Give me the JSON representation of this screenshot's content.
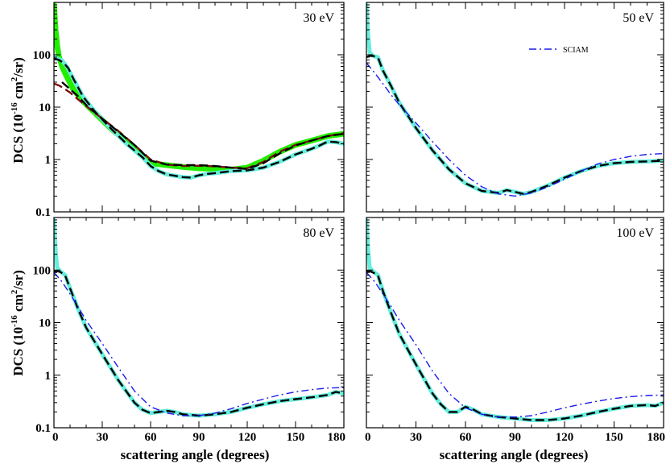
{
  "figure": {
    "y_axis_label": "DCS (10",
    "y_axis_exp": "-16",
    "y_axis_mid": " cm",
    "y_axis_sq": "2",
    "y_axis_end": "/sr)",
    "x_axis_label": "scattering angle (degrees)"
  },
  "colors": {
    "green": "#22ee00",
    "cyan": "#66eedd",
    "maroon": "#7a0f0f",
    "black": "#000000",
    "blue": "#1a1aee"
  },
  "legend": {
    "sciam": "SCIAM"
  },
  "chart_data": [
    {
      "type": "line",
      "energy_label": "30 eV",
      "xlim": [
        0,
        180
      ],
      "ylim": [
        0.1,
        1000
      ],
      "yscale": "log",
      "x_ticks": [
        "0",
        "30",
        "60",
        "90",
        "120",
        "150",
        "180"
      ],
      "y_ticks": [
        "0.1",
        "1",
        "10",
        "100"
      ],
      "series": [
        {
          "name": "green band",
          "style": "green-thick",
          "x": [
            0,
            1,
            2,
            3,
            5,
            8,
            12,
            18,
            25,
            35,
            45,
            55,
            60,
            70,
            80,
            90,
            100,
            110,
            120,
            130,
            140,
            150,
            160,
            170,
            180
          ],
          "y": [
            900,
            300,
            150,
            95,
            60,
            38,
            22,
            13,
            8,
            4,
            2.2,
            1.2,
            0.85,
            0.78,
            0.72,
            0.68,
            0.66,
            0.64,
            0.7,
            0.95,
            1.4,
            1.9,
            2.3,
            2.8,
            3.1
          ]
        },
        {
          "name": "cyan band",
          "style": "cyan-thick",
          "x": [
            0,
            2,
            5,
            8,
            12,
            18,
            25,
            35,
            45,
            55,
            60,
            65,
            70,
            80,
            85,
            90,
            95,
            100,
            110,
            120,
            130,
            140,
            150,
            160,
            165,
            170,
            175,
            180
          ],
          "y": [
            90,
            85,
            78,
            60,
            35,
            16,
            8.5,
            4,
            2,
            1.1,
            0.75,
            0.6,
            0.52,
            0.46,
            0.45,
            0.5,
            0.53,
            0.55,
            0.6,
            0.62,
            0.7,
            0.9,
            1.25,
            1.6,
            1.85,
            2.2,
            2.15,
            2.0
          ]
        },
        {
          "name": "black dashed",
          "style": "black-dash",
          "x": [
            0,
            3,
            6,
            9,
            12,
            18,
            25,
            35,
            45,
            55,
            60,
            65,
            70,
            80,
            85,
            90,
            95,
            100,
            110,
            120,
            130,
            140,
            150,
            160,
            165,
            170,
            175,
            180
          ],
          "y": [
            85,
            80,
            70,
            55,
            35,
            16,
            8.5,
            4,
            2,
            1.1,
            0.75,
            0.6,
            0.52,
            0.46,
            0.45,
            0.5,
            0.53,
            0.55,
            0.6,
            0.62,
            0.7,
            0.9,
            1.25,
            1.6,
            1.85,
            2.2,
            2.15,
            2.0
          ]
        },
        {
          "name": "maroon dashed",
          "style": "maroon-dash",
          "x": [
            0,
            3,
            6,
            10,
            15,
            20,
            30,
            40,
            50,
            60,
            70,
            80,
            90,
            100,
            110,
            120,
            130,
            140,
            150,
            160,
            170,
            180
          ],
          "y": [
            28,
            26,
            23,
            19,
            14,
            10.5,
            6,
            3.5,
            1.9,
            1.0,
            0.8,
            0.75,
            0.76,
            0.74,
            0.7,
            0.68,
            0.9,
            1.4,
            1.9,
            2.3,
            2.8,
            3.2
          ]
        },
        {
          "name": "black dashed 2",
          "style": "black-dash",
          "x": [
            5,
            10,
            15,
            20,
            30,
            40,
            50,
            60,
            70,
            80,
            90,
            100,
            110,
            120,
            130,
            140,
            150,
            160,
            170,
            180
          ],
          "y": [
            30,
            22,
            16,
            11,
            6,
            3.4,
            1.9,
            0.95,
            0.8,
            0.78,
            0.78,
            0.75,
            0.7,
            0.66,
            0.85,
            1.3,
            1.85,
            2.3,
            2.8,
            3.1
          ]
        }
      ]
    },
    {
      "type": "line",
      "energy_label": "50 eV",
      "legend_label": "SCIAM",
      "xlim": [
        0,
        180
      ],
      "ylim": [
        0.1,
        1000
      ],
      "yscale": "log",
      "x_ticks": [
        "0",
        "30",
        "60",
        "90",
        "120",
        "150",
        "180"
      ],
      "y_ticks": [
        "0.1",
        "1",
        "10",
        "100"
      ],
      "series": [
        {
          "name": "cyan band",
          "style": "cyan-thick",
          "x": [
            0,
            1,
            2,
            4,
            7,
            10,
            15,
            20,
            30,
            40,
            50,
            60,
            70,
            75,
            80,
            85,
            90,
            95,
            100,
            110,
            120,
            130,
            140,
            150,
            160,
            170,
            180
          ],
          "y": [
            900,
            250,
            110,
            95,
            90,
            50,
            25,
            12,
            4,
            1.5,
            0.65,
            0.35,
            0.25,
            0.24,
            0.23,
            0.26,
            0.24,
            0.22,
            0.24,
            0.32,
            0.45,
            0.6,
            0.75,
            0.85,
            0.9,
            0.92,
            0.95
          ]
        },
        {
          "name": "black dashed",
          "style": "black-dash",
          "x": [
            0,
            2,
            4,
            7,
            10,
            15,
            20,
            30,
            40,
            50,
            60,
            70,
            75,
            80,
            85,
            90,
            95,
            100,
            110,
            120,
            130,
            140,
            150,
            160,
            170,
            180
          ],
          "y": [
            90,
            95,
            95,
            88,
            50,
            25,
            12,
            4,
            1.5,
            0.65,
            0.35,
            0.25,
            0.24,
            0.23,
            0.26,
            0.24,
            0.22,
            0.24,
            0.32,
            0.45,
            0.6,
            0.75,
            0.85,
            0.9,
            0.92,
            0.95
          ]
        },
        {
          "name": "SCIAM",
          "style": "blue-dashdot",
          "x": [
            0,
            5,
            10,
            15,
            20,
            30,
            40,
            50,
            60,
            70,
            80,
            90,
            100,
            110,
            120,
            130,
            140,
            150,
            160,
            170,
            180
          ],
          "y": [
            70,
            45,
            28,
            17,
            11,
            5,
            2.2,
            1.0,
            0.5,
            0.3,
            0.22,
            0.2,
            0.23,
            0.3,
            0.42,
            0.6,
            0.82,
            1.0,
            1.15,
            1.25,
            1.3
          ]
        }
      ]
    },
    {
      "type": "line",
      "energy_label": "80 eV",
      "xlim": [
        0,
        180
      ],
      "ylim": [
        0.1,
        1000
      ],
      "yscale": "log",
      "x_ticks": [
        "0",
        "30",
        "60",
        "90",
        "120",
        "150",
        "180"
      ],
      "y_ticks": [
        "0.1",
        "1",
        "10",
        "100"
      ],
      "series": [
        {
          "name": "cyan band",
          "style": "cyan-thick",
          "x": [
            0,
            1,
            2,
            4,
            7,
            10,
            15,
            20,
            30,
            40,
            50,
            55,
            60,
            65,
            70,
            75,
            80,
            90,
            100,
            110,
            120,
            130,
            140,
            150,
            160,
            170,
            175,
            180
          ],
          "y": [
            900,
            250,
            110,
            95,
            80,
            45,
            18,
            8,
            2.5,
            0.8,
            0.3,
            0.22,
            0.19,
            0.2,
            0.21,
            0.2,
            0.18,
            0.17,
            0.18,
            0.2,
            0.24,
            0.28,
            0.32,
            0.35,
            0.38,
            0.42,
            0.48,
            0.45
          ]
        },
        {
          "name": "black dashed",
          "style": "black-dash",
          "x": [
            0,
            2,
            4,
            7,
            10,
            15,
            20,
            30,
            40,
            50,
            55,
            60,
            65,
            70,
            75,
            80,
            90,
            100,
            110,
            120,
            130,
            140,
            150,
            160,
            170,
            175,
            180
          ],
          "y": [
            95,
            95,
            92,
            78,
            45,
            18,
            8,
            2.5,
            0.8,
            0.3,
            0.22,
            0.19,
            0.2,
            0.21,
            0.2,
            0.18,
            0.17,
            0.18,
            0.2,
            0.24,
            0.28,
            0.32,
            0.35,
            0.38,
            0.42,
            0.48,
            0.45
          ]
        },
        {
          "name": "SCIAM",
          "style": "blue-dashdot",
          "x": [
            0,
            5,
            10,
            15,
            20,
            30,
            40,
            50,
            60,
            70,
            80,
            90,
            100,
            110,
            120,
            130,
            140,
            150,
            160,
            170,
            180
          ],
          "y": [
            90,
            60,
            35,
            20,
            11,
            4,
            1.4,
            0.5,
            0.25,
            0.19,
            0.17,
            0.17,
            0.19,
            0.23,
            0.29,
            0.35,
            0.42,
            0.48,
            0.53,
            0.57,
            0.58
          ]
        }
      ]
    },
    {
      "type": "line",
      "energy_label": "100 eV",
      "xlim": [
        0,
        180
      ],
      "ylim": [
        0.1,
        1000
      ],
      "yscale": "log",
      "x_ticks": [
        "0",
        "30",
        "60",
        "90",
        "120",
        "150",
        "180"
      ],
      "y_ticks": [
        "0.1",
        "1",
        "10",
        "100"
      ],
      "series": [
        {
          "name": "cyan band",
          "style": "cyan-thick",
          "x": [
            0,
            1,
            2,
            4,
            7,
            10,
            15,
            20,
            30,
            40,
            45,
            50,
            55,
            60,
            65,
            70,
            80,
            90,
            100,
            110,
            120,
            130,
            140,
            150,
            160,
            170,
            175,
            180
          ],
          "y": [
            900,
            250,
            110,
            95,
            80,
            40,
            15,
            6,
            1.6,
            0.45,
            0.28,
            0.2,
            0.2,
            0.25,
            0.22,
            0.18,
            0.16,
            0.15,
            0.14,
            0.14,
            0.15,
            0.17,
            0.2,
            0.23,
            0.26,
            0.27,
            0.26,
            0.3
          ]
        },
        {
          "name": "black dashed",
          "style": "black-dash",
          "x": [
            0,
            2,
            4,
            7,
            10,
            15,
            20,
            30,
            40,
            45,
            50,
            55,
            60,
            65,
            70,
            80,
            90,
            100,
            110,
            120,
            130,
            140,
            150,
            160,
            170,
            175,
            180
          ],
          "y": [
            95,
            95,
            90,
            78,
            40,
            15,
            6,
            1.6,
            0.45,
            0.28,
            0.2,
            0.2,
            0.25,
            0.22,
            0.18,
            0.16,
            0.15,
            0.14,
            0.14,
            0.15,
            0.17,
            0.2,
            0.23,
            0.26,
            0.27,
            0.26,
            0.3
          ]
        },
        {
          "name": "SCIAM",
          "style": "blue-dashdot",
          "x": [
            0,
            5,
            10,
            15,
            20,
            30,
            40,
            50,
            60,
            70,
            80,
            90,
            100,
            110,
            120,
            130,
            140,
            150,
            160,
            170,
            180
          ],
          "y": [
            90,
            60,
            35,
            20,
            11,
            3.8,
            1.2,
            0.45,
            0.24,
            0.18,
            0.16,
            0.16,
            0.17,
            0.2,
            0.24,
            0.28,
            0.32,
            0.36,
            0.39,
            0.41,
            0.42
          ]
        }
      ]
    }
  ]
}
